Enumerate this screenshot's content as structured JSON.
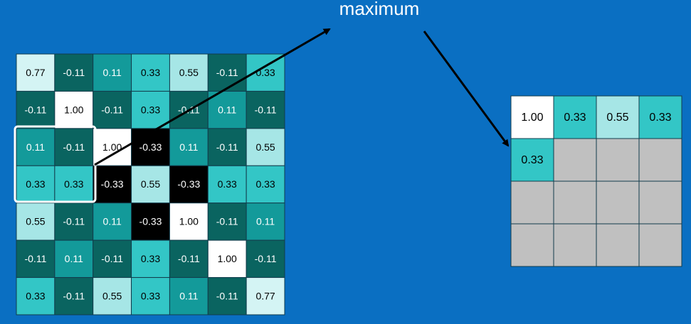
{
  "title": "maximum",
  "input": {
    "rows": [
      [
        "0.77",
        "-0.11",
        "0.11",
        "0.33",
        "0.55",
        "-0.11",
        "0.33"
      ],
      [
        "-0.11",
        "1.00",
        "-0.11",
        "0.33",
        "-0.11",
        "0.11",
        "-0.11"
      ],
      [
        "0.11",
        "-0.11",
        "1.00",
        "-0.33",
        "0.11",
        "-0.11",
        "0.55"
      ],
      [
        "0.33",
        "0.33",
        "-0.33",
        "0.55",
        "-0.33",
        "0.33",
        "0.33"
      ],
      [
        "0.55",
        "-0.11",
        "0.11",
        "-0.33",
        "1.00",
        "-0.11",
        "0.11"
      ],
      [
        "-0.11",
        "0.11",
        "-0.11",
        "0.33",
        "-0.11",
        "1.00",
        "-0.11"
      ],
      [
        "0.33",
        "-0.11",
        "0.55",
        "0.33",
        "0.11",
        "-0.11",
        "0.77"
      ]
    ]
  },
  "output": {
    "rows": [
      [
        "1.00",
        "0.33",
        "0.55",
        "0.33"
      ],
      [
        "0.33",
        null,
        null,
        null
      ],
      [
        null,
        null,
        null,
        null
      ],
      [
        null,
        null,
        null,
        null
      ]
    ]
  }
}
